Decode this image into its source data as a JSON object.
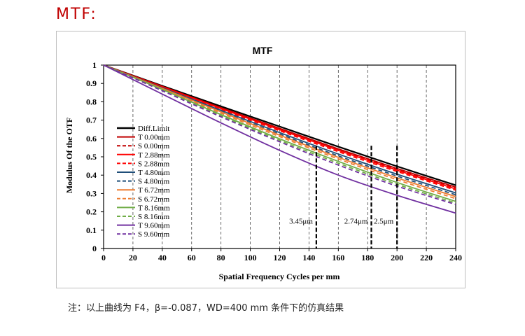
{
  "page": {
    "heading": "MTF:",
    "footnote": "注：以上曲线为 F4，β=-0.087，WD=400 mm 条件下的仿真结果"
  },
  "chart_data": {
    "type": "line",
    "title": "MTF",
    "xlabel": "Spatial Frequency Cycles per mm",
    "ylabel": "Modulus Of the OTF",
    "xlim": [
      0,
      240
    ],
    "ylim": [
      0,
      1
    ],
    "xticks": [
      0,
      20,
      40,
      60,
      80,
      100,
      120,
      140,
      160,
      180,
      200,
      220,
      240
    ],
    "yticks": [
      0,
      0.1,
      0.2,
      0.3,
      0.4,
      0.5,
      0.6,
      0.7,
      0.8,
      0.9,
      1
    ],
    "grid": "vertical dashed",
    "legend_position": "left",
    "x": [
      0,
      40,
      80,
      120,
      160,
      200,
      240
    ],
    "series": [
      {
        "name": "Diff.Limit",
        "color": "#000000",
        "dash": "solid",
        "values": [
          1,
          0.887,
          0.775,
          0.665,
          0.555,
          0.448,
          0.345
        ]
      },
      {
        "name": "T 0.00mm",
        "color": "#c00000",
        "dash": "solid",
        "values": [
          1,
          0.884,
          0.768,
          0.655,
          0.543,
          0.436,
          0.335
        ]
      },
      {
        "name": "S 0.00mm",
        "color": "#c00000",
        "dash": "dashed",
        "values": [
          1,
          0.882,
          0.765,
          0.652,
          0.54,
          0.432,
          0.33
        ]
      },
      {
        "name": "T 2.88mm",
        "color": "#ff0000",
        "dash": "solid",
        "values": [
          1,
          0.882,
          0.763,
          0.648,
          0.535,
          0.427,
          0.325
        ]
      },
      {
        "name": "S 2.88mm",
        "color": "#ff0000",
        "dash": "dashed",
        "values": [
          1,
          0.879,
          0.758,
          0.642,
          0.528,
          0.42,
          0.318
        ]
      },
      {
        "name": "T 4.80mm",
        "color": "#1f4e79",
        "dash": "solid",
        "values": [
          1,
          0.876,
          0.753,
          0.632,
          0.515,
          0.405,
          0.303
        ]
      },
      {
        "name": "S 4.80mm",
        "color": "#1f4e79",
        "dash": "dashed",
        "values": [
          1,
          0.873,
          0.747,
          0.624,
          0.505,
          0.395,
          0.293
        ]
      },
      {
        "name": "T 6.72mm",
        "color": "#ed7d31",
        "dash": "solid",
        "values": [
          1,
          0.873,
          0.745,
          0.618,
          0.497,
          0.385,
          0.283
        ]
      },
      {
        "name": "S 6.72mm",
        "color": "#ed7d31",
        "dash": "dashed",
        "values": [
          1,
          0.87,
          0.738,
          0.61,
          0.488,
          0.375,
          0.272
        ]
      },
      {
        "name": "T 8.16mm",
        "color": "#70ad47",
        "dash": "solid",
        "values": [
          1,
          0.867,
          0.73,
          0.598,
          0.475,
          0.36,
          0.257
        ]
      },
      {
        "name": "S 8.16mm",
        "color": "#70ad47",
        "dash": "dashed",
        "values": [
          1,
          0.864,
          0.724,
          0.59,
          0.465,
          0.35,
          0.248
        ]
      },
      {
        "name": "T 9.60mm",
        "color": "#7030a0",
        "dash": "solid",
        "values": [
          1,
          0.842,
          0.685,
          0.535,
          0.4,
          0.29,
          0.193
        ]
      },
      {
        "name": "S 9.60mm",
        "color": "#7030a0",
        "dash": "dashed",
        "values": [
          1,
          0.86,
          0.718,
          0.582,
          0.455,
          0.34,
          0.24
        ]
      }
    ],
    "annotations": [
      {
        "label": "3.45μm",
        "x": 145
      },
      {
        "label": "2.74μm",
        "x": 182.5
      },
      {
        "label": "2.5μm",
        "x": 200
      }
    ]
  }
}
